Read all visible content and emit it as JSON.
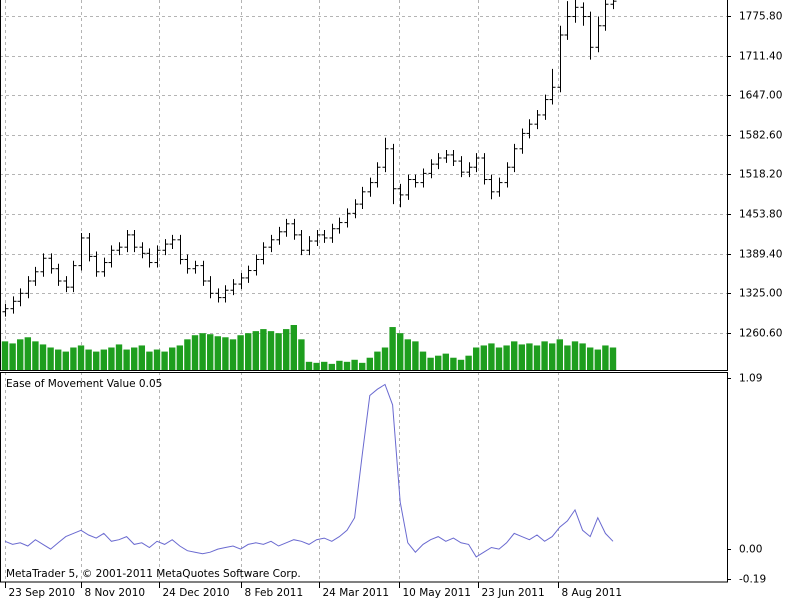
{
  "chart_data": [
    {
      "type": "ohlc",
      "xlim": [
        -0.66,
        95
      ],
      "xticks": [
        {
          "value": 0,
          "label": "23 Sep 2010"
        },
        {
          "value": 10,
          "label": "8 Nov 2010"
        },
        {
          "value": 20.3,
          "label": "24 Dec 2010"
        },
        {
          "value": 31,
          "label": "8 Feb 2011"
        },
        {
          "value": 41.3,
          "label": "24 Mar 2011"
        },
        {
          "value": 51.8,
          "label": "10 May 2011"
        },
        {
          "value": 62.2,
          "label": "23 Jun 2011"
        },
        {
          "value": 72.7,
          "label": "8 Aug 2011"
        }
      ],
      "ylim": [
        1200.3,
        1801.9
      ],
      "yticks": [
        {
          "value": 1260.6,
          "label": "1260.60"
        },
        {
          "value": 1325,
          "label": "1325.00"
        },
        {
          "value": 1389.4,
          "label": "1389.40"
        },
        {
          "value": 1453.8,
          "label": "1453.80"
        },
        {
          "value": 1518.2,
          "label": "1518.20"
        },
        {
          "value": 1582.6,
          "label": "1582.60"
        },
        {
          "value": 1647,
          "label": "1647.00"
        },
        {
          "value": 1711.4,
          "label": "1711.40"
        },
        {
          "value": 1775.8,
          "label": "1775.80"
        }
      ],
      "grid": true,
      "color": "#000000",
      "open": [
        1295,
        1300,
        1312,
        1325,
        1345,
        1360,
        1382,
        1365,
        1345,
        1335,
        1370,
        1415,
        1385,
        1360,
        1375,
        1395,
        1400,
        1420,
        1400,
        1390,
        1375,
        1395,
        1405,
        1412,
        1380,
        1365,
        1370,
        1345,
        1325,
        1318,
        1330,
        1340,
        1350,
        1362,
        1380,
        1400,
        1412,
        1425,
        1438,
        1420,
        1395,
        1410,
        1420,
        1415,
        1430,
        1440,
        1455,
        1470,
        1490,
        1505,
        1530,
        1560,
        1495,
        1485,
        1510,
        1505,
        1520,
        1535,
        1545,
        1550,
        1540,
        1522,
        1530,
        1545,
        1510,
        1490,
        1505,
        1530,
        1560,
        1585,
        1600,
        1615,
        1640,
        1660,
        1745,
        1775,
        1790,
        1775,
        1725,
        1760,
        1795
      ],
      "high": [
        1308,
        1320,
        1333,
        1353,
        1368,
        1390,
        1390,
        1373,
        1353,
        1378,
        1423,
        1423,
        1393,
        1383,
        1403,
        1408,
        1428,
        1428,
        1408,
        1398,
        1403,
        1413,
        1420,
        1420,
        1388,
        1378,
        1378,
        1353,
        1333,
        1338,
        1348,
        1358,
        1370,
        1388,
        1408,
        1420,
        1433,
        1446,
        1446,
        1428,
        1418,
        1428,
        1428,
        1438,
        1448,
        1463,
        1478,
        1498,
        1513,
        1538,
        1578,
        1568,
        1503,
        1518,
        1518,
        1528,
        1543,
        1553,
        1558,
        1558,
        1548,
        1538,
        1553,
        1553,
        1518,
        1513,
        1538,
        1568,
        1593,
        1608,
        1623,
        1648,
        1690,
        1760,
        1800,
        1805,
        1798,
        1783,
        1775,
        1803,
        1808
      ],
      "low": [
        1287,
        1292,
        1304,
        1317,
        1337,
        1352,
        1357,
        1337,
        1327,
        1327,
        1362,
        1377,
        1352,
        1352,
        1367,
        1387,
        1392,
        1392,
        1382,
        1367,
        1367,
        1387,
        1397,
        1372,
        1357,
        1357,
        1337,
        1317,
        1310,
        1310,
        1322,
        1332,
        1342,
        1354,
        1372,
        1392,
        1404,
        1417,
        1412,
        1387,
        1387,
        1402,
        1407,
        1407,
        1422,
        1432,
        1447,
        1462,
        1482,
        1497,
        1522,
        1470,
        1465,
        1477,
        1497,
        1497,
        1512,
        1527,
        1537,
        1532,
        1514,
        1514,
        1522,
        1502,
        1478,
        1482,
        1497,
        1522,
        1552,
        1577,
        1592,
        1607,
        1632,
        1652,
        1737,
        1765,
        1760,
        1705,
        1717,
        1752,
        1787
      ],
      "close": [
        1300,
        1312,
        1325,
        1345,
        1360,
        1382,
        1365,
        1345,
        1335,
        1370,
        1415,
        1385,
        1360,
        1375,
        1395,
        1400,
        1420,
        1400,
        1390,
        1375,
        1395,
        1405,
        1412,
        1380,
        1365,
        1370,
        1345,
        1325,
        1318,
        1330,
        1340,
        1350,
        1362,
        1380,
        1400,
        1412,
        1425,
        1438,
        1420,
        1395,
        1410,
        1420,
        1415,
        1430,
        1440,
        1455,
        1470,
        1490,
        1505,
        1530,
        1560,
        1495,
        1485,
        1510,
        1505,
        1520,
        1535,
        1545,
        1550,
        1540,
        1522,
        1530,
        1545,
        1510,
        1490,
        1505,
        1530,
        1560,
        1585,
        1600,
        1615,
        1640,
        1660,
        1745,
        1775,
        1790,
        1775,
        1725,
        1760,
        1795,
        1800
      ],
      "volume": {
        "color": "#1e9e1e",
        "values": [
          28,
          26,
          30,
          32,
          28,
          25,
          22,
          20,
          18,
          22,
          24,
          20,
          18,
          20,
          22,
          25,
          20,
          22,
          24,
          18,
          20,
          18,
          22,
          24,
          30,
          34,
          36,
          35,
          33,
          32,
          30,
          34,
          36,
          38,
          40,
          38,
          36,
          40,
          44,
          30,
          8,
          7,
          8,
          6,
          9,
          8,
          10,
          7,
          12,
          18,
          22,
          42,
          36,
          30,
          28,
          18,
          12,
          14,
          16,
          12,
          10,
          14,
          22,
          24,
          26,
          22,
          24,
          28,
          25,
          26,
          24,
          28,
          26,
          30,
          24,
          28,
          26,
          22,
          20,
          24,
          22
        ]
      }
    },
    {
      "type": "line",
      "title": "Ease of Movement Value 0.05",
      "annotation": "MetaTrader 5, © 2001-2011 MetaQuotes Software Corp.",
      "ylim": [
        -0.21,
        1.13
      ],
      "yticks": [
        {
          "value": 1.09,
          "label": "1.09"
        },
        {
          "value": 0,
          "label": "0.00"
        },
        {
          "value": -0.19,
          "label": "-0.19"
        }
      ],
      "color": "#6a6ad0",
      "values": [
        0.05,
        0.03,
        0.04,
        0.02,
        0.06,
        0.03,
        0.0,
        0.04,
        0.08,
        0.1,
        0.12,
        0.09,
        0.07,
        0.1,
        0.05,
        0.06,
        0.08,
        0.03,
        0.04,
        0.01,
        0.05,
        0.03,
        0.06,
        0.02,
        -0.01,
        -0.02,
        -0.03,
        -0.02,
        0.0,
        0.01,
        0.02,
        0.0,
        0.03,
        0.04,
        0.03,
        0.05,
        0.02,
        0.04,
        0.06,
        0.05,
        0.03,
        0.06,
        0.07,
        0.05,
        0.08,
        0.12,
        0.2,
        0.6,
        0.98,
        1.02,
        1.05,
        0.92,
        0.3,
        0.04,
        -0.02,
        0.03,
        0.06,
        0.08,
        0.05,
        0.07,
        0.04,
        0.03,
        -0.05,
        -0.02,
        0.01,
        0.0,
        0.04,
        0.1,
        0.08,
        0.06,
        0.09,
        0.05,
        0.08,
        0.14,
        0.18,
        0.25,
        0.12,
        0.08,
        0.2,
        0.1,
        0.05
      ]
    }
  ]
}
